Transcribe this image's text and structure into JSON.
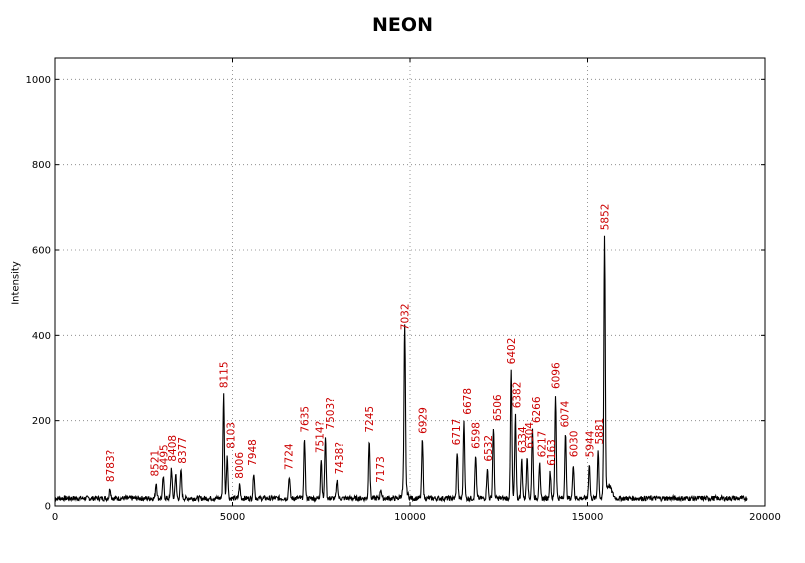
{
  "chart_data": {
    "type": "line",
    "title": "NEON",
    "xlabel": "",
    "ylabel": "Intensity",
    "xlim": [
      0,
      20000
    ],
    "ylim": [
      0,
      1050
    ],
    "x_ticks": [
      "0",
      "5000",
      "10000",
      "15000",
      "20000"
    ],
    "y_ticks": [
      "0",
      "200",
      "400",
      "600",
      "800",
      "1000"
    ],
    "grid": true,
    "baseline": 18,
    "x_range": [
      0,
      19500
    ],
    "series": [
      {
        "peaks": [
          {
            "x": 1550,
            "y": 42
          },
          {
            "x": 2850,
            "y": 55
          },
          {
            "x": 3050,
            "y": 68
          },
          {
            "x": 3280,
            "y": 90
          },
          {
            "x": 3400,
            "y": 75
          },
          {
            "x": 3550,
            "y": 85
          },
          {
            "x": 4750,
            "y": 262
          },
          {
            "x": 4850,
            "y": 120
          },
          {
            "x": 5200,
            "y": 50
          },
          {
            "x": 5600,
            "y": 80
          },
          {
            "x": 6600,
            "y": 70
          },
          {
            "x": 7030,
            "y": 158
          },
          {
            "x": 7500,
            "y": 110
          },
          {
            "x": 7620,
            "y": 165
          },
          {
            "x": 7950,
            "y": 60
          },
          {
            "x": 8850,
            "y": 158
          },
          {
            "x": 9180,
            "y": 40
          },
          {
            "x": 9850,
            "y": 398
          },
          {
            "x": 10350,
            "y": 155
          },
          {
            "x": 11330,
            "y": 128
          },
          {
            "x": 11520,
            "y": 200
          },
          {
            "x": 11850,
            "y": 120
          },
          {
            "x": 12180,
            "y": 90
          },
          {
            "x": 12350,
            "y": 185
          },
          {
            "x": 12850,
            "y": 318
          },
          {
            "x": 12970,
            "y": 215
          },
          {
            "x": 13150,
            "y": 110
          },
          {
            "x": 13300,
            "y": 120
          },
          {
            "x": 13450,
            "y": 180
          },
          {
            "x": 13650,
            "y": 100
          },
          {
            "x": 13950,
            "y": 80
          },
          {
            "x": 14100,
            "y": 260
          },
          {
            "x": 14380,
            "y": 170
          },
          {
            "x": 14600,
            "y": 100
          },
          {
            "x": 15050,
            "y": 100
          },
          {
            "x": 15300,
            "y": 130
          },
          {
            "x": 15480,
            "y": 632
          }
        ]
      }
    ],
    "annotations": [
      {
        "text": "8783?",
        "x": 1550,
        "y": 42
      },
      {
        "text": "8521",
        "x": 2800,
        "y": 55
      },
      {
        "text": "8495",
        "x": 3050,
        "y": 68
      },
      {
        "text": "8408",
        "x": 3300,
        "y": 90
      },
      {
        "text": "8377",
        "x": 3580,
        "y": 85
      },
      {
        "text": "8115",
        "x": 4750,
        "y": 262
      },
      {
        "text": "8103",
        "x": 4950,
        "y": 120
      },
      {
        "text": "8006",
        "x": 5180,
        "y": 50
      },
      {
        "text": "7948",
        "x": 5550,
        "y": 80
      },
      {
        "text": "7724",
        "x": 6580,
        "y": 70
      },
      {
        "text": "7635",
        "x": 7030,
        "y": 158
      },
      {
        "text": "7514?",
        "x": 7450,
        "y": 110
      },
      {
        "text": "7503?",
        "x": 7750,
        "y": 165
      },
      {
        "text": "7438?",
        "x": 8000,
        "y": 60
      },
      {
        "text": "7245",
        "x": 8850,
        "y": 158
      },
      {
        "text": "7173",
        "x": 9150,
        "y": 40
      },
      {
        "text": "7032",
        "x": 9850,
        "y": 398
      },
      {
        "text": "6929",
        "x": 10350,
        "y": 155
      },
      {
        "text": "6717",
        "x": 11300,
        "y": 128
      },
      {
        "text": "6678",
        "x": 11600,
        "y": 200
      },
      {
        "text": "6598",
        "x": 11850,
        "y": 120
      },
      {
        "text": "6532",
        "x": 12200,
        "y": 90
      },
      {
        "text": "6506",
        "x": 12450,
        "y": 185
      },
      {
        "text": "6402",
        "x": 12850,
        "y": 318
      },
      {
        "text": "6382",
        "x": 13000,
        "y": 215
      },
      {
        "text": "6334",
        "x": 13150,
        "y": 110
      },
      {
        "text": "6304",
        "x": 13350,
        "y": 120
      },
      {
        "text": "6266",
        "x": 13550,
        "y": 180
      },
      {
        "text": "6217",
        "x": 13700,
        "y": 100
      },
      {
        "text": "6163",
        "x": 13970,
        "y": 80
      },
      {
        "text": "6096",
        "x": 14100,
        "y": 260
      },
      {
        "text": "6074",
        "x": 14350,
        "y": 170
      },
      {
        "text": "6030",
        "x": 14600,
        "y": 100
      },
      {
        "text": "5944",
        "x": 15050,
        "y": 100
      },
      {
        "text": "5881",
        "x": 15320,
        "y": 130
      },
      {
        "text": "5852",
        "x": 15480,
        "y": 632
      }
    ],
    "colors": {
      "line": "#000000",
      "annotation": "#cc0000",
      "grid": "#7f7f7f",
      "axes": "#000000"
    }
  }
}
